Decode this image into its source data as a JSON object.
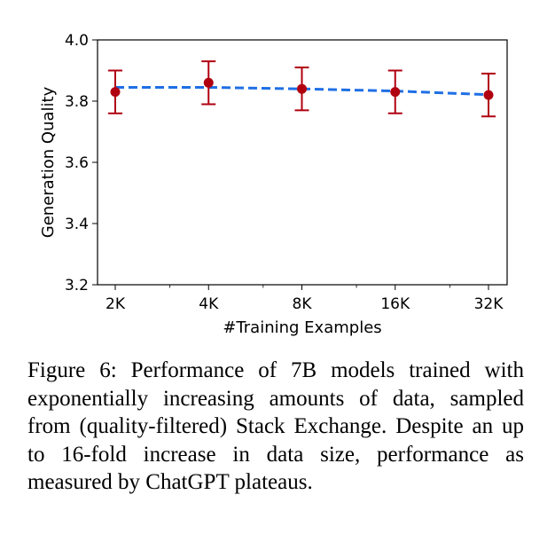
{
  "chart_data": {
    "type": "line",
    "xlabel": "#Training Examples",
    "ylabel": "Generation Quality",
    "x_scale": "log2",
    "categories": [
      "2K",
      "4K",
      "8K",
      "16K",
      "32K"
    ],
    "x": [
      2000,
      4000,
      8000,
      16000,
      32000
    ],
    "ylim": [
      3.2,
      4.0
    ],
    "yticks": [
      "3.2",
      "3.4",
      "3.6",
      "3.8",
      "4.0"
    ],
    "grid": false,
    "series": [
      {
        "kind": "trend",
        "style": "dashed",
        "color": "#1f6fe5",
        "values": [
          3.845,
          3.845,
          3.84,
          3.833,
          3.821
        ]
      },
      {
        "kind": "points-with-error-bars",
        "color": "#b00010",
        "values": [
          3.83,
          3.86,
          3.84,
          3.83,
          3.82
        ],
        "err_low": [
          3.76,
          3.79,
          3.77,
          3.76,
          3.75
        ],
        "err_high": [
          3.9,
          3.93,
          3.91,
          3.9,
          3.89
        ]
      }
    ]
  },
  "caption": "Figure 6: Performance of 7B models trained with exponentially increasing amounts of data, sampled from (quality-filtered) Stack Exchange. Despite an up to 16-fold increase in data size, performance as measured by ChatGPT plateaus."
}
